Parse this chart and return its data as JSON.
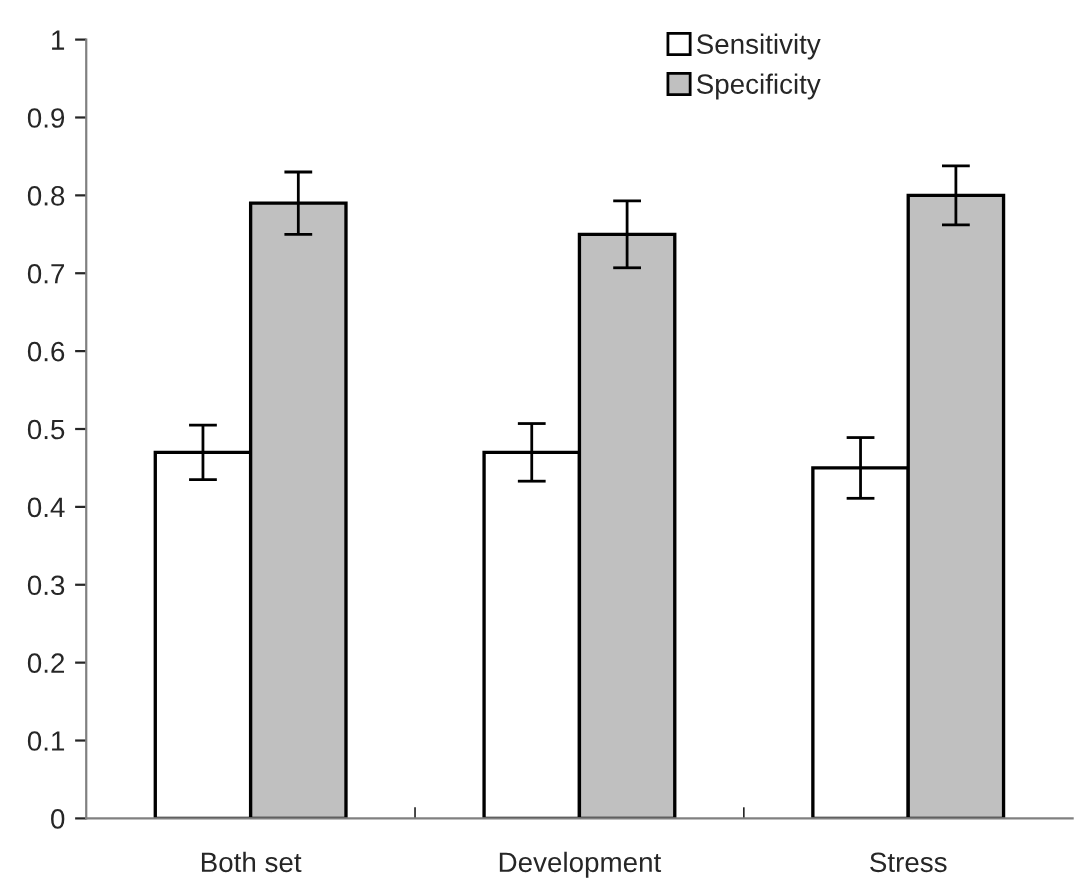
{
  "chart_data": {
    "type": "bar",
    "categories": [
      "Both set",
      "Development",
      "Stress"
    ],
    "series": [
      {
        "name": "Sensitivity",
        "color": "#ffffff",
        "values": [
          0.47,
          0.47,
          0.45
        ],
        "errors": [
          0.035,
          0.037,
          0.039
        ]
      },
      {
        "name": "Specificity",
        "color": "#c0c0c0",
        "values": [
          0.79,
          0.75,
          0.8
        ],
        "errors": [
          0.04,
          0.043,
          0.038
        ]
      }
    ],
    "ylim": [
      0,
      1
    ],
    "yticks": [
      0,
      0.1,
      0.2,
      0.3,
      0.4,
      0.5,
      0.6,
      0.7,
      0.8,
      0.9,
      1
    ],
    "grid": false,
    "legend": "top right"
  }
}
